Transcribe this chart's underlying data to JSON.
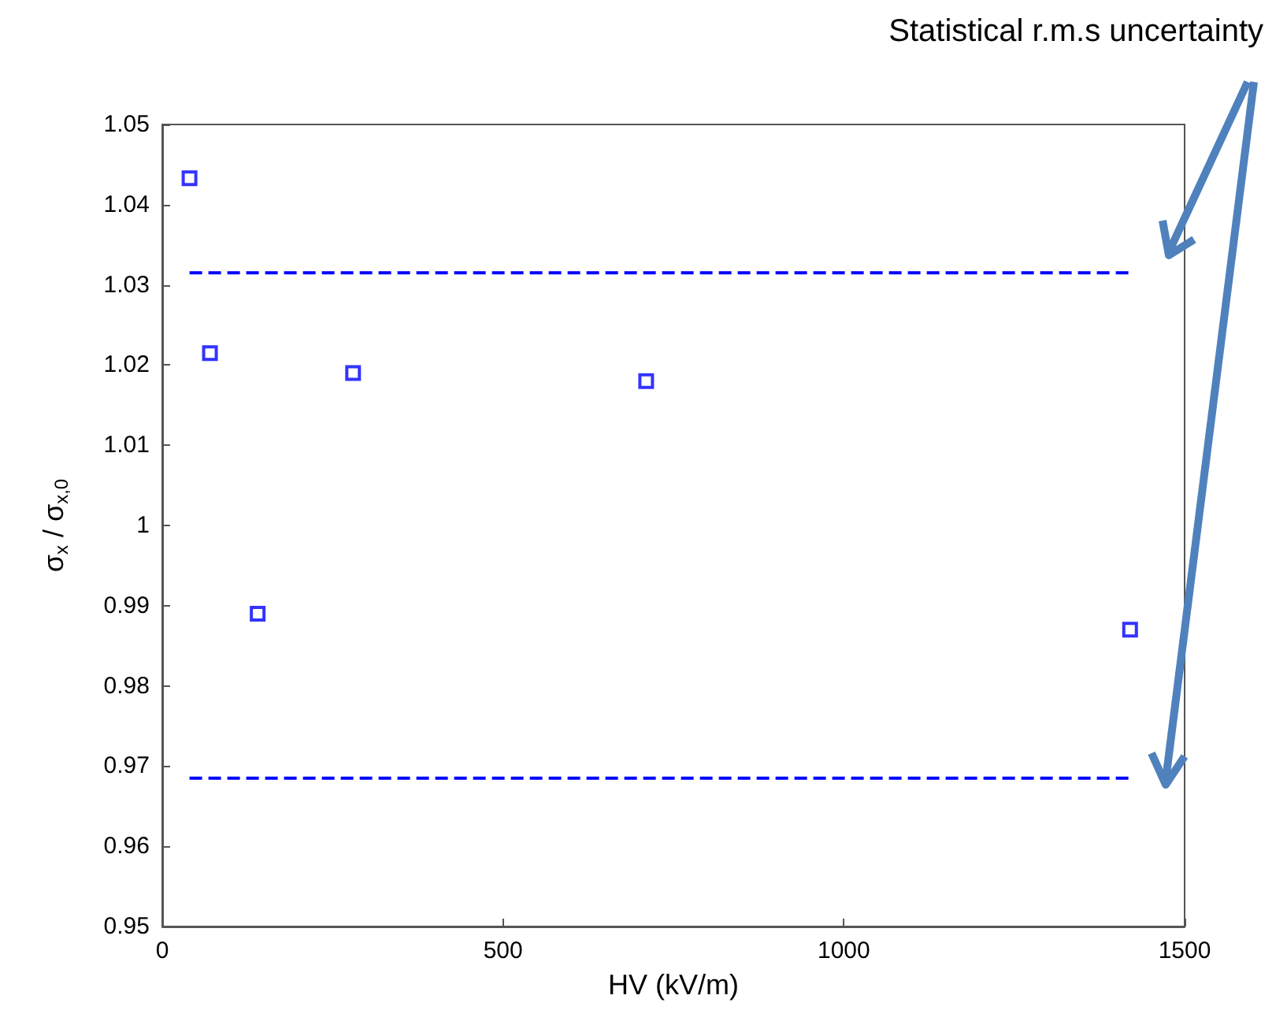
{
  "chart_data": {
    "type": "scatter",
    "xlabel": "HV (kV/m)",
    "ylabel": "σ$_{x}$ / σ$_{x,0}$",
    "annotations": [
      "Statistical r.m.s uncertainty"
    ],
    "series": [
      {
        "color": "#0000ff",
        "marker": "square",
        "x": [
          40,
          70,
          140,
          280,
          710,
          1420
        ],
        "values": [
          1.0433,
          1.0215,
          0.989,
          1.019,
          1.018,
          0.987
        ]
      },
      {
        "type": "line",
        "color": "#0000ff",
        "marker": "none",
        "line_style": "dashed",
        "x": [
          40,
          1420
        ],
        "values": [
          1.0315,
          1.0315
        ]
      },
      {
        "type": "line",
        "color": "#0000ff",
        "marker": "none",
        "line_style": "dashed",
        "x": [
          40,
          1420
        ],
        "values": [
          0.9685,
          0.9685
        ]
      }
    ],
    "xlim": [
      0,
      1500
    ],
    "xticks": [
      0,
      500,
      1000,
      1500
    ],
    "ylim": [
      0.95,
      1.05
    ],
    "yticks": [
      0.95,
      0.96,
      0.97,
      0.98,
      0.99,
      1,
      1.01,
      1.02,
      1.03,
      1.04,
      1.05
    ],
    "grid": false
  }
}
